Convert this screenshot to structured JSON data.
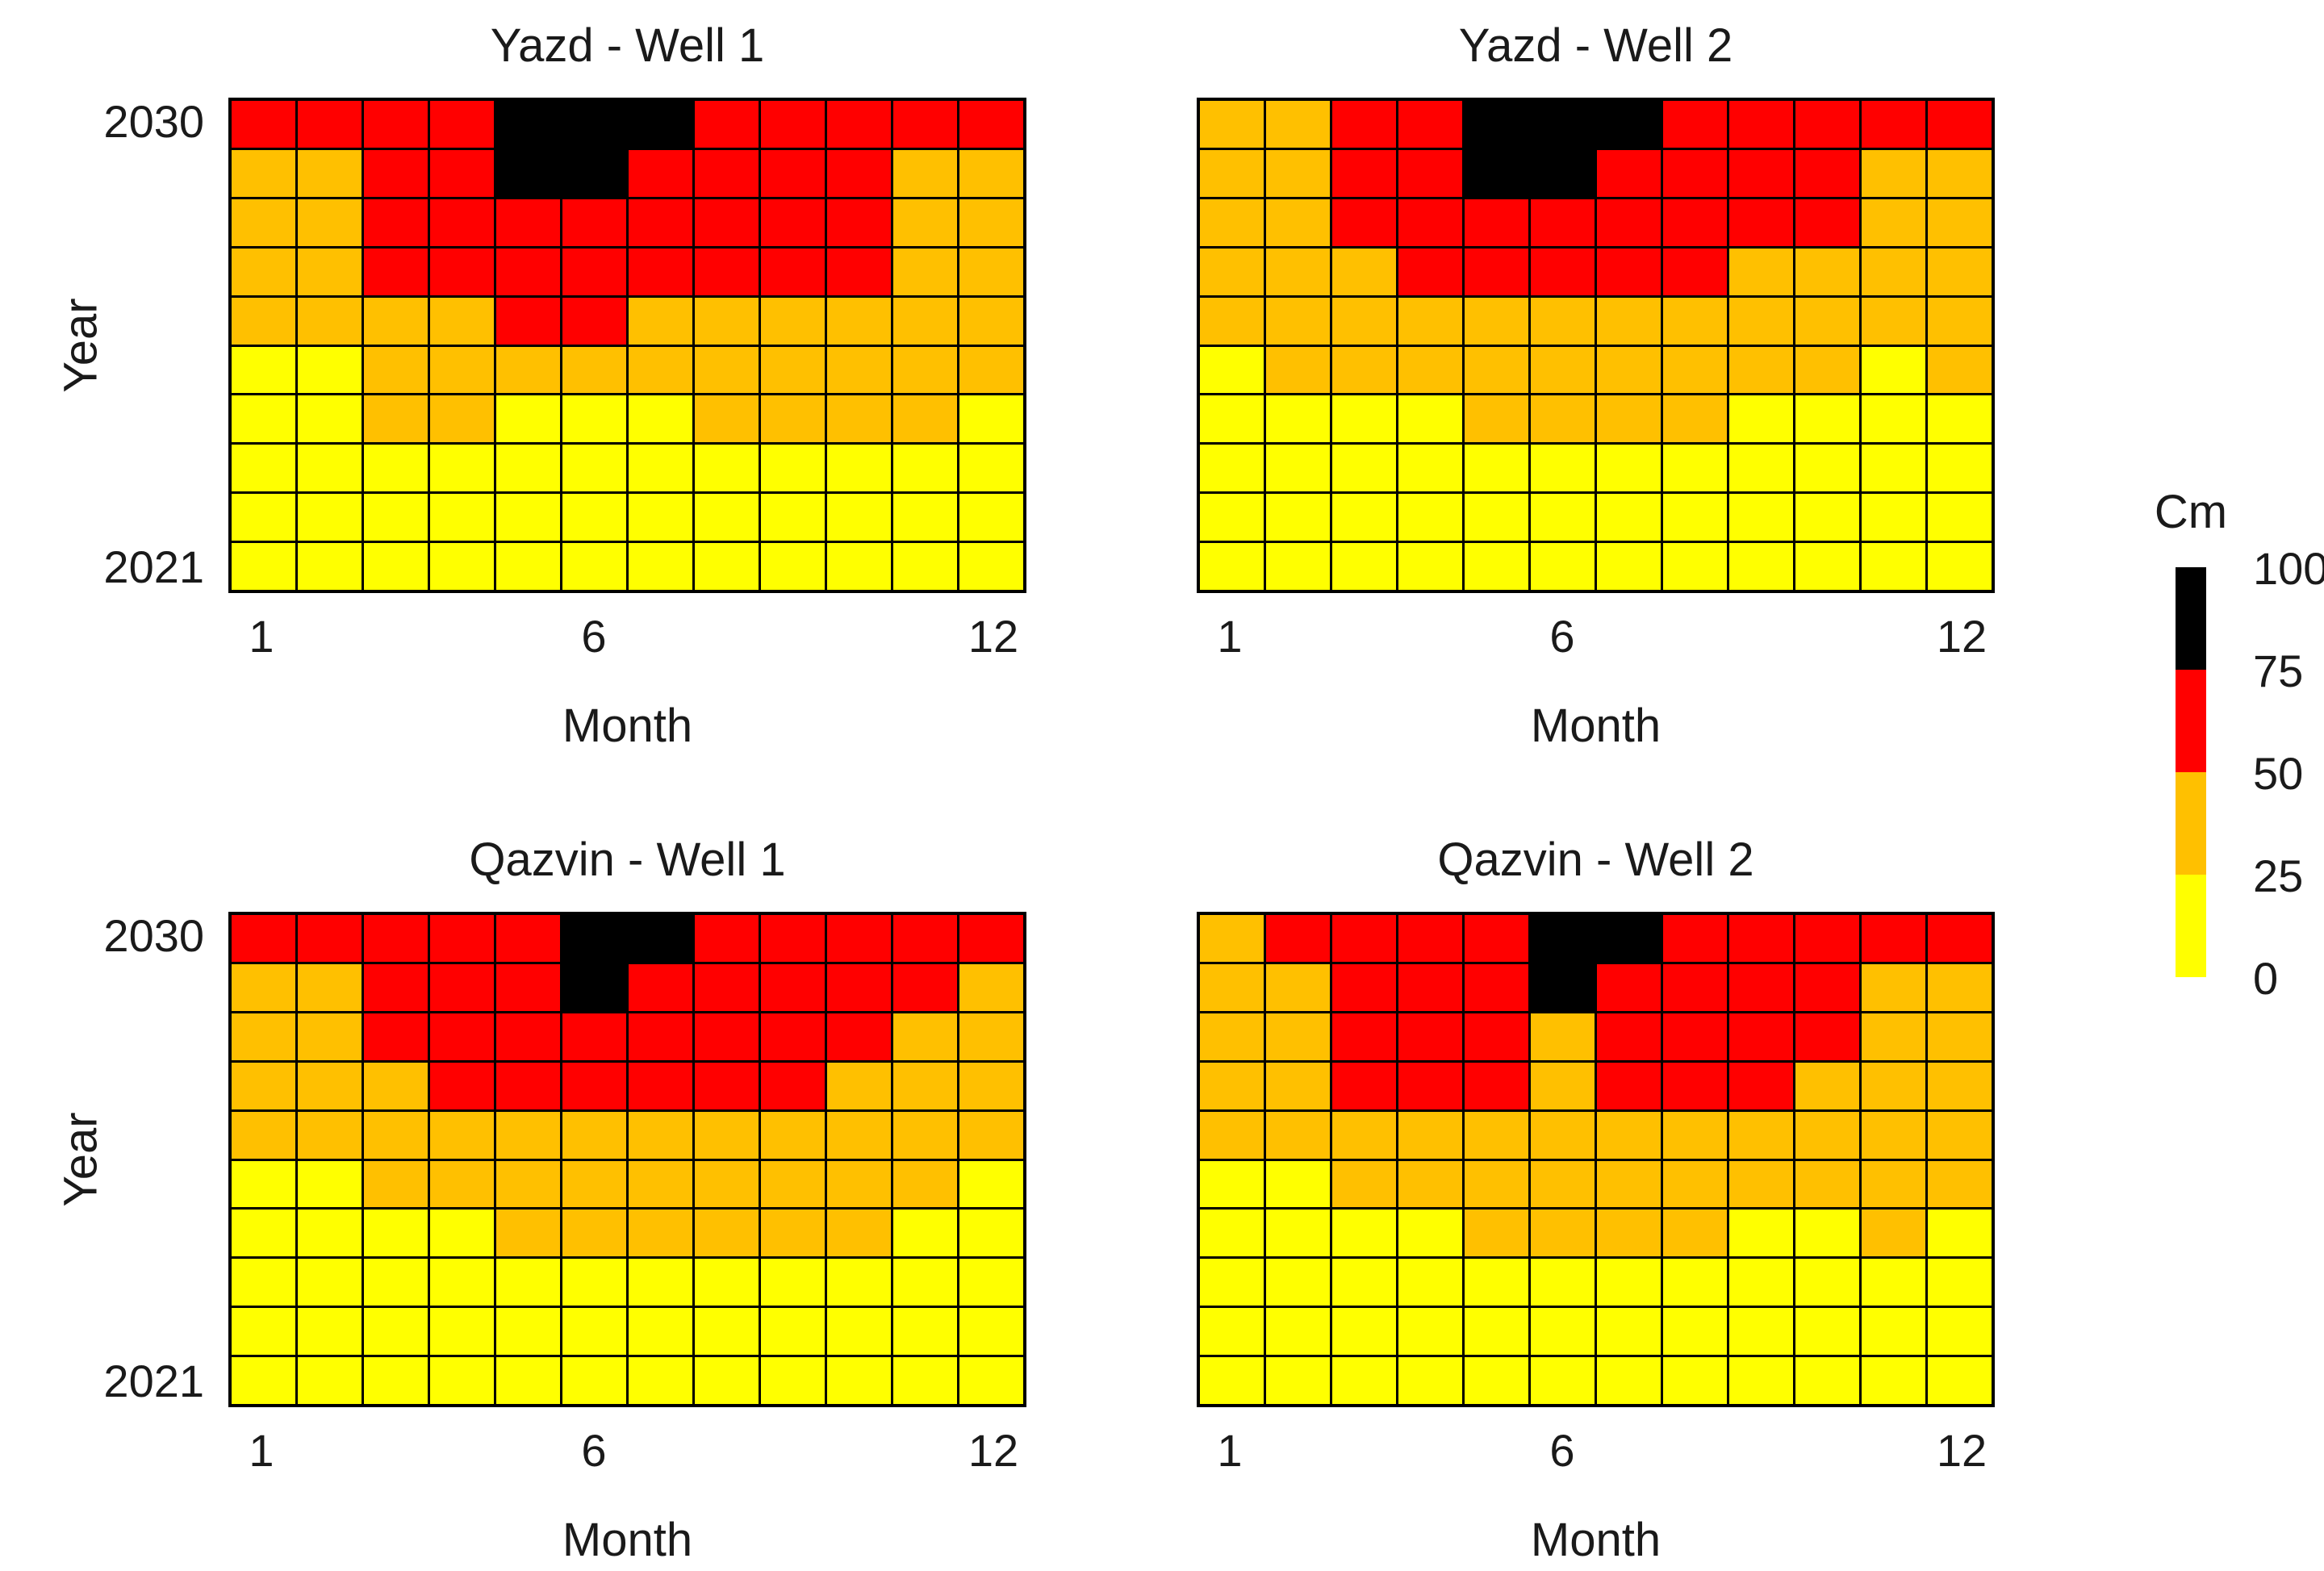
{
  "colors": {
    "yellow": "#FFFF00",
    "orange": "#FFC000",
    "red": "#FF0000",
    "black": "#000000",
    "grid_line": "#000000",
    "background": "#FFFFFF",
    "text": "#1A1A1A"
  },
  "axes": {
    "x_label": "Month",
    "y_label": "Year",
    "x_ticks": [
      "1",
      "6",
      "12"
    ],
    "y_ticks": [
      "2030",
      "2021"
    ]
  },
  "legend": {
    "title": "Cm",
    "tick_labels": [
      "100",
      "75",
      "50",
      "25",
      "0"
    ],
    "segments_top_to_bottom": [
      "black",
      "red",
      "orange",
      "yellow"
    ],
    "bins_cm": {
      "yellow": "0-25",
      "orange": "25-50",
      "red": "50-75",
      "black": "75-100"
    }
  },
  "chart_data": [
    {
      "type": "heatmap",
      "title": "Yazd - Well 1",
      "xlabel": "Month",
      "ylabel": "Year",
      "x_values": [
        1,
        2,
        3,
        4,
        5,
        6,
        7,
        8,
        9,
        10,
        11,
        12
      ],
      "y_values_top_to_bottom": [
        2030,
        2029,
        2028,
        2027,
        2026,
        2025,
        2024,
        2023,
        2022,
        2021
      ],
      "x_tick_labels": [
        "1",
        "6",
        "12"
      ],
      "y_tick_labels": [
        "2030",
        "2021"
      ],
      "cell_code_legend": {
        "Y": "yellow 0-25 cm",
        "O": "orange 25-50 cm",
        "R": "red 50-75 cm",
        "B": "black 75-100 cm"
      },
      "rows_top_to_bottom": [
        "RRRRBBBRRRRR",
        "OORRBBRRRROO",
        "OORRRRRRRROO",
        "OORRRRRRRROO",
        "OOOORROOOOOO",
        "YYOOOOOOOOOO",
        "YYOOYYYOOOOY",
        "YYYYYYYYYYYY",
        "YYYYYYYYYYYY",
        "YYYYYYYYYYYY"
      ]
    },
    {
      "type": "heatmap",
      "title": "Yazd - Well 2",
      "xlabel": "Month",
      "ylabel": "Year",
      "x_values": [
        1,
        2,
        3,
        4,
        5,
        6,
        7,
        8,
        9,
        10,
        11,
        12
      ],
      "y_values_top_to_bottom": [
        2030,
        2029,
        2028,
        2027,
        2026,
        2025,
        2024,
        2023,
        2022,
        2021
      ],
      "x_tick_labels": [
        "1",
        "6",
        "12"
      ],
      "y_tick_labels": [
        "2030",
        "2021"
      ],
      "cell_code_legend": {
        "Y": "yellow 0-25 cm",
        "O": "orange 25-50 cm",
        "R": "red 50-75 cm",
        "B": "black 75-100 cm"
      },
      "rows_top_to_bottom": [
        "OORRBBBRRRRR",
        "OORRBBRRRROO",
        "OORRRRRRRROO",
        "OOORRRRROOOO",
        "OOOOOOOOOOOO",
        "YOOOOOOOOOYO",
        "YYYYOOOOYYYY",
        "YYYYYYYYYYYY",
        "YYYYYYYYYYYY",
        "YYYYYYYYYYYY"
      ]
    },
    {
      "type": "heatmap",
      "title": "Qazvin - Well 1",
      "xlabel": "Month",
      "ylabel": "Year",
      "x_values": [
        1,
        2,
        3,
        4,
        5,
        6,
        7,
        8,
        9,
        10,
        11,
        12
      ],
      "y_values_top_to_bottom": [
        2030,
        2029,
        2028,
        2027,
        2026,
        2025,
        2024,
        2023,
        2022,
        2021
      ],
      "x_tick_labels": [
        "1",
        "6",
        "12"
      ],
      "y_tick_labels": [
        "2030",
        "2021"
      ],
      "cell_code_legend": {
        "Y": "yellow 0-25 cm",
        "O": "orange 25-50 cm",
        "R": "red 50-75 cm",
        "B": "black 75-100 cm"
      },
      "rows_top_to_bottom": [
        "RRRRRBBRRRRR",
        "OORRRBRRRRRO",
        "OORRRRRRRROO",
        "OOORRRRRROOO",
        "OOOOOOOOOOOO",
        "YYOOOOOOOOOY",
        "YYYYOOOOOOYY",
        "YYYYYYYYYYYY",
        "YYYYYYYYYYYY",
        "YYYYYYYYYYYY"
      ]
    },
    {
      "type": "heatmap",
      "title": "Qazvin - Well 2",
      "xlabel": "Month",
      "ylabel": "Year",
      "x_values": [
        1,
        2,
        3,
        4,
        5,
        6,
        7,
        8,
        9,
        10,
        11,
        12
      ],
      "y_values_top_to_bottom": [
        2030,
        2029,
        2028,
        2027,
        2026,
        2025,
        2024,
        2023,
        2022,
        2021
      ],
      "x_tick_labels": [
        "1",
        "6",
        "12"
      ],
      "y_tick_labels": [
        "2030",
        "2021"
      ],
      "cell_code_legend": {
        "Y": "yellow 0-25 cm",
        "O": "orange 25-50 cm",
        "R": "red 50-75 cm",
        "B": "black 75-100 cm"
      },
      "rows_top_to_bottom": [
        "ORRRRBBRRRRR",
        "OORRRBRRRROO",
        "OORRRORRRROO",
        "OORRRORRROOO",
        "OOOOOOOOOOOO",
        "YYOOOOOOOOOO",
        "YYYYOOOOYYOY",
        "YYYYYYYYYYYY",
        "YYYYYYYYYYYY",
        "YYYYYYYYYYYY"
      ]
    }
  ]
}
